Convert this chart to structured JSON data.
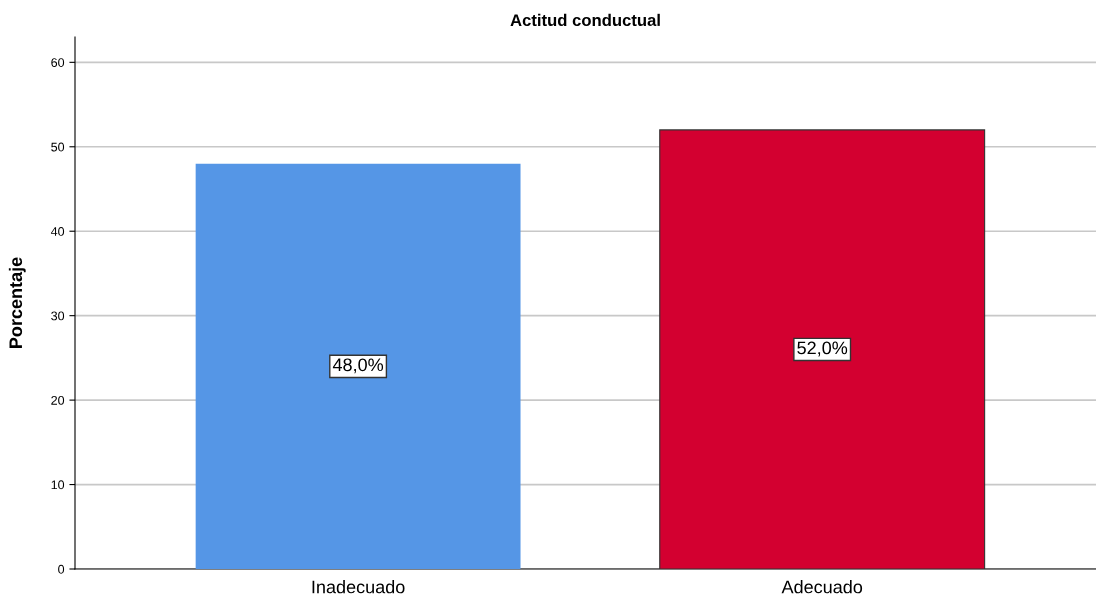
{
  "chart_data": {
    "type": "bar",
    "title": "Actitud conductual",
    "ylabel": "Porcentaje",
    "categories": [
      "Inadecuado",
      "Adecuado"
    ],
    "values": [
      48.0,
      52.0
    ],
    "colors": [
      "#5596e6",
      "#d30030"
    ],
    "value_labels": [
      "48,0%",
      "52,0%"
    ],
    "ylim": [
      0,
      63
    ],
    "yticks": [
      0,
      10,
      20,
      30,
      40,
      50,
      60
    ],
    "grid": "y"
  }
}
